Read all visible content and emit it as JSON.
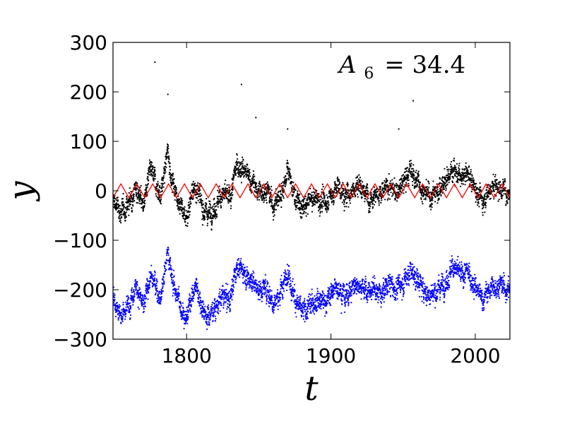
{
  "chart_data": {
    "type": "scatter",
    "xlabel": "t",
    "ylabel": "y",
    "xlim": [
      1749,
      2024
    ],
    "ylim": [
      -300,
      300
    ],
    "xticks": [
      1800,
      1900,
      2000
    ],
    "xtick_labels": [
      "1800",
      "1900",
      "2000"
    ],
    "yticks": [
      300,
      200,
      100,
      0,
      -100,
      -200,
      -300
    ],
    "ytick_labels": [
      "300",
      "200",
      "100",
      "0",
      "−100",
      "−200",
      "−300"
    ],
    "annotation": {
      "symbol": "A",
      "subscript": "6",
      "value": "= 34.4"
    },
    "grid": false,
    "series": [
      {
        "kind": "points",
        "color": "#000000",
        "start": 1749,
        "end": 2024,
        "centre_points": [
          [
            1749,
            -20
          ],
          [
            1755,
            -45
          ],
          [
            1760,
            -25
          ],
          [
            1765,
            10
          ],
          [
            1770,
            -30
          ],
          [
            1775,
            40
          ],
          [
            1778,
            20
          ],
          [
            1782,
            -10
          ],
          [
            1787,
            80
          ],
          [
            1790,
            20
          ],
          [
            1795,
            -20
          ],
          [
            1800,
            -60
          ],
          [
            1803,
            -10
          ],
          [
            1807,
            10
          ],
          [
            1810,
            -30
          ],
          [
            1815,
            -45
          ],
          [
            1820,
            -30
          ],
          [
            1825,
            -5
          ],
          [
            1830,
            -20
          ],
          [
            1835,
            55
          ],
          [
            1840,
            40
          ],
          [
            1845,
            20
          ],
          [
            1850,
            -5
          ],
          [
            1855,
            5
          ],
          [
            1860,
            -30
          ],
          [
            1865,
            -10
          ],
          [
            1870,
            40
          ],
          [
            1875,
            -10
          ],
          [
            1880,
            -40
          ],
          [
            1885,
            -20
          ],
          [
            1890,
            -15
          ],
          [
            1895,
            -25
          ],
          [
            1900,
            -10
          ],
          [
            1905,
            10
          ],
          [
            1910,
            -15
          ],
          [
            1915,
            5
          ],
          [
            1920,
            15
          ],
          [
            1925,
            -10
          ],
          [
            1930,
            -5
          ],
          [
            1935,
            -10
          ],
          [
            1940,
            10
          ],
          [
            1945,
            -5
          ],
          [
            1950,
            15
          ],
          [
            1955,
            40
          ],
          [
            1960,
            20
          ],
          [
            1965,
            -5
          ],
          [
            1970,
            -10
          ],
          [
            1975,
            5
          ],
          [
            1980,
            20
          ],
          [
            1985,
            50
          ],
          [
            1990,
            20
          ],
          [
            1995,
            35
          ],
          [
            2000,
            5
          ],
          [
            2005,
            -20
          ],
          [
            2010,
            5
          ],
          [
            2015,
            10
          ],
          [
            2024,
            -5
          ]
        ],
        "spread": 28,
        "spikes": [
          [
            1778,
            260
          ],
          [
            1787,
            195
          ],
          [
            1838,
            215
          ],
          [
            1848,
            148
          ],
          [
            1870,
            125
          ],
          [
            1957,
            182
          ],
          [
            1947,
            125
          ]
        ]
      },
      {
        "kind": "points",
        "color": "#0000ff",
        "start": 1749,
        "end": 2024,
        "centre_points": [
          [
            1749,
            -210
          ],
          [
            1755,
            -255
          ],
          [
            1760,
            -230
          ],
          [
            1765,
            -185
          ],
          [
            1770,
            -240
          ],
          [
            1775,
            -170
          ],
          [
            1778,
            -190
          ],
          [
            1782,
            -215
          ],
          [
            1787,
            -120
          ],
          [
            1790,
            -180
          ],
          [
            1795,
            -225
          ],
          [
            1800,
            -260
          ],
          [
            1803,
            -215
          ],
          [
            1807,
            -190
          ],
          [
            1810,
            -230
          ],
          [
            1815,
            -255
          ],
          [
            1820,
            -235
          ],
          [
            1825,
            -215
          ],
          [
            1830,
            -220
          ],
          [
            1835,
            -150
          ],
          [
            1840,
            -165
          ],
          [
            1845,
            -180
          ],
          [
            1850,
            -200
          ],
          [
            1855,
            -195
          ],
          [
            1860,
            -225
          ],
          [
            1865,
            -210
          ],
          [
            1870,
            -160
          ],
          [
            1875,
            -215
          ],
          [
            1880,
            -250
          ],
          [
            1885,
            -235
          ],
          [
            1890,
            -215
          ],
          [
            1895,
            -225
          ],
          [
            1900,
            -210
          ],
          [
            1905,
            -190
          ],
          [
            1910,
            -215
          ],
          [
            1915,
            -195
          ],
          [
            1920,
            -185
          ],
          [
            1925,
            -205
          ],
          [
            1930,
            -200
          ],
          [
            1935,
            -210
          ],
          [
            1940,
            -185
          ],
          [
            1945,
            -200
          ],
          [
            1950,
            -185
          ],
          [
            1955,
            -160
          ],
          [
            1960,
            -180
          ],
          [
            1965,
            -205
          ],
          [
            1970,
            -210
          ],
          [
            1975,
            -195
          ],
          [
            1980,
            -180
          ],
          [
            1985,
            -150
          ],
          [
            1990,
            -175
          ],
          [
            1995,
            -165
          ],
          [
            2000,
            -195
          ],
          [
            2005,
            -220
          ],
          [
            2010,
            -200
          ],
          [
            2015,
            -190
          ],
          [
            2024,
            -200
          ]
        ],
        "spread": 28
      },
      {
        "kind": "line",
        "color": "#ff0000",
        "start": 1749,
        "end": 2024,
        "centre": 0,
        "amplitude": 14,
        "period": 11
      }
    ]
  }
}
